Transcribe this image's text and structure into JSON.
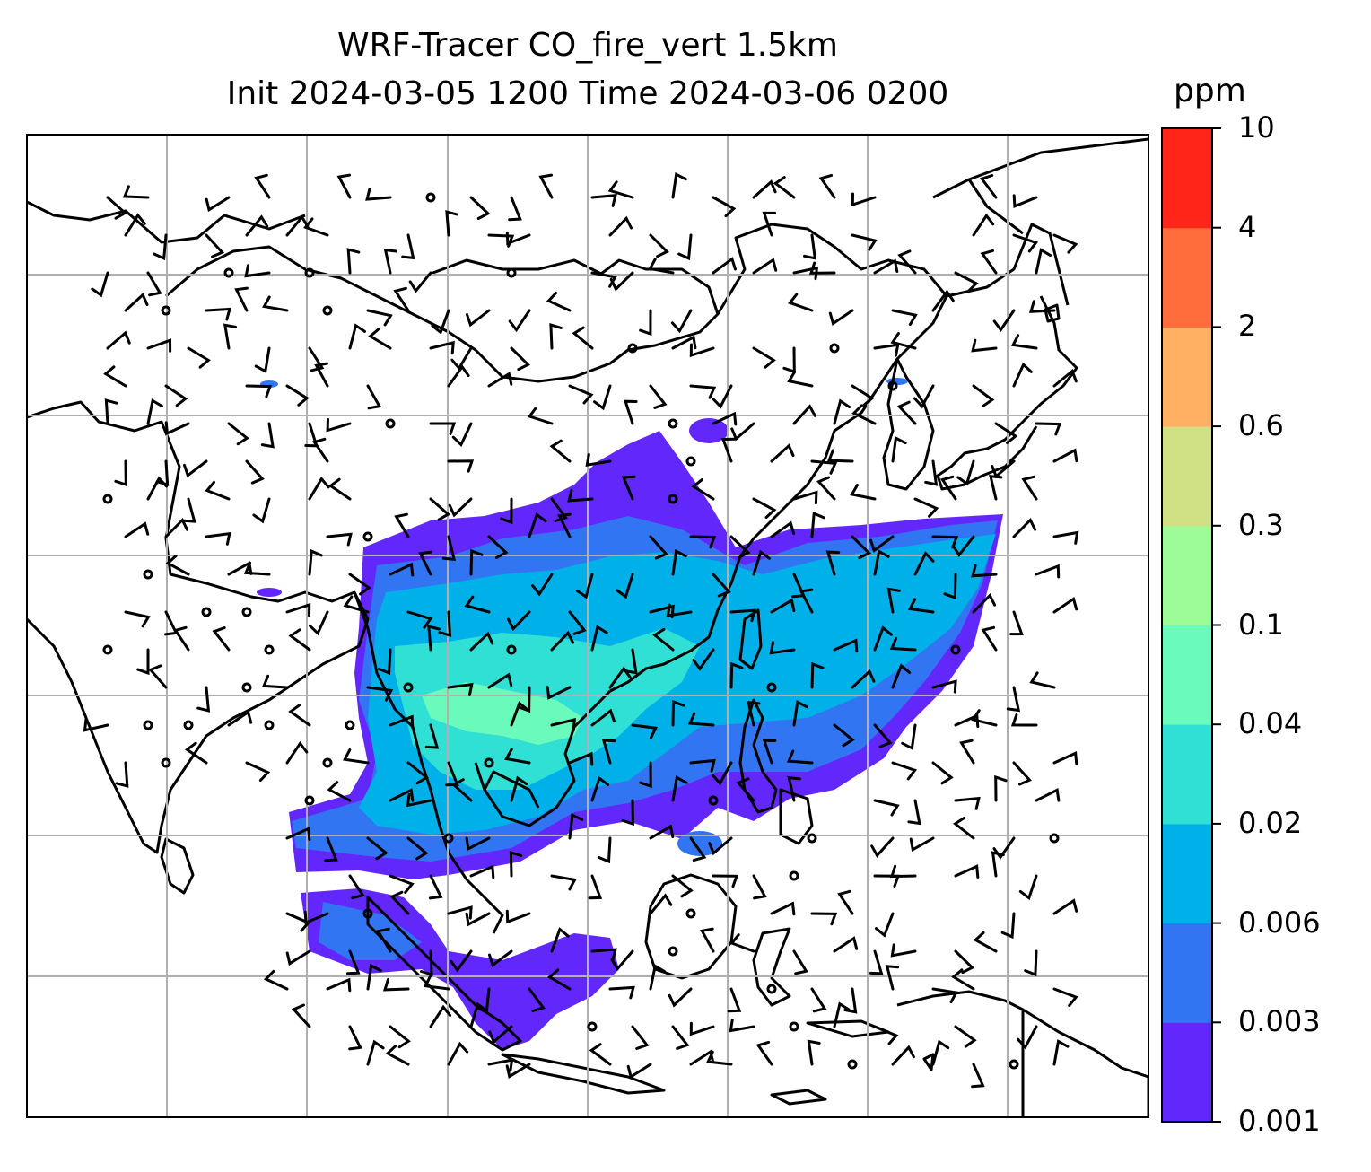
{
  "title": {
    "line1": "WRF-Tracer CO_fire_vert 1.5km",
    "line2": "Init 2024-03-05 1200 Time 2024-03-06 0200"
  },
  "colorbar": {
    "unit": "ppm",
    "ticks": [
      "10",
      "4",
      "2",
      "0.6",
      "0.3",
      "0.1",
      "0.04",
      "0.02",
      "0.006",
      "0.003",
      "0.001"
    ],
    "colors": [
      "#6228fb",
      "#3275f2",
      "#00b0e8",
      "#30e0d5",
      "#6afbbc",
      "#9dfb98",
      "#d0e084",
      "#ffb062",
      "#ff6d3c",
      "#ff2518"
    ]
  },
  "map": {
    "coastline_color": "#000000",
    "grid_color": "#b0b0b0",
    "wind_barb_color": "#000000",
    "plume_levels": [
      "0.001",
      "0.003",
      "0.006",
      "0.02",
      "0.04"
    ]
  }
}
